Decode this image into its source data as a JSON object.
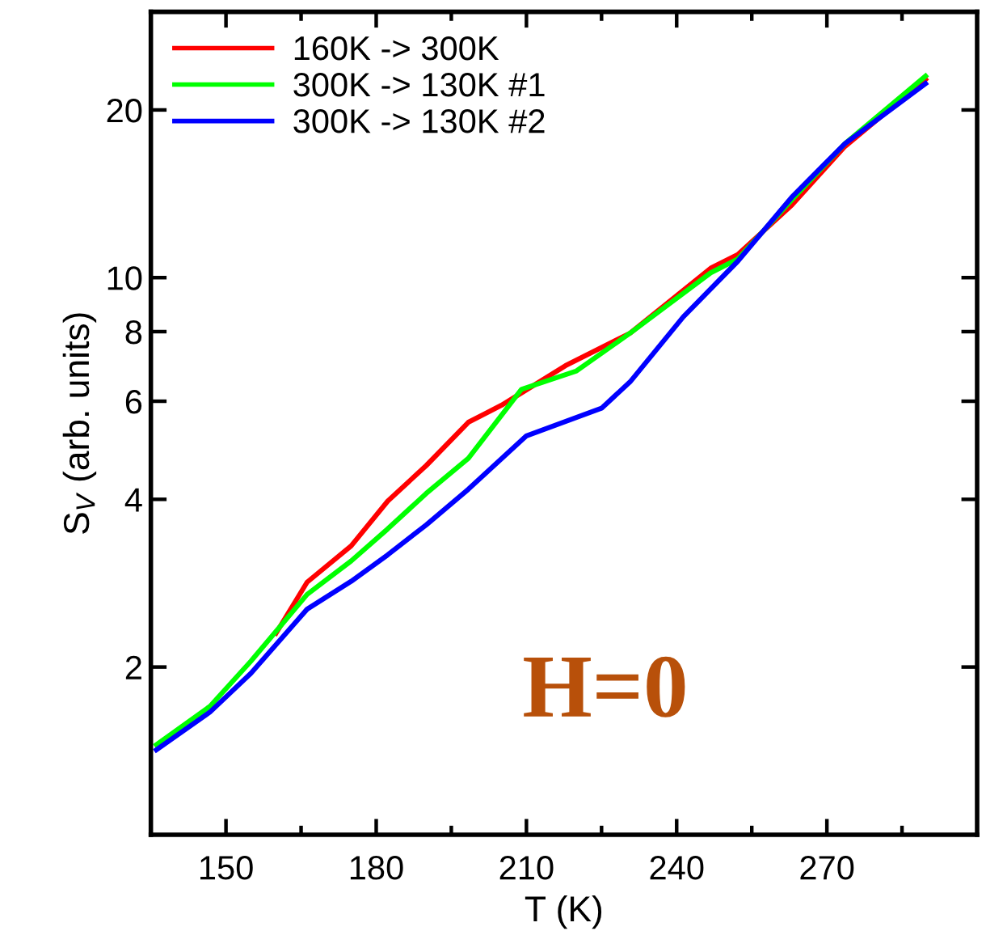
{
  "chart_data": {
    "type": "line",
    "xlabel": "T (K)",
    "ylabel": "S$_{V}$ (arb. units)",
    "log": "y",
    "xlim": [
      135,
      300
    ],
    "xticks": [
      150,
      180,
      210,
      240,
      270
    ],
    "ylim": [
      1,
      30
    ],
    "yticks": [
      2,
      4,
      6,
      8,
      10,
      20
    ],
    "grid": false,
    "legend": "top left",
    "marker": "none",
    "line_style": "solid",
    "annotations": [
      "H=0"
    ],
    "series": [
      {
        "name": "160K -> 300K",
        "color": "#ff0000",
        "x": [
          160,
          166.2,
          175,
          182.3,
          190,
          198.4,
          205,
          217.8,
          230.7,
          246.8,
          252.2,
          263,
          273.6,
          289.7
        ],
        "values": [
          2.3,
          2.84,
          3.3,
          3.97,
          4.6,
          5.5,
          5.9,
          6.95,
          7.95,
          10.4,
          11.0,
          13.5,
          17.2,
          22.7
        ]
      },
      {
        "name": "300K -> 130K #1",
        "color": "#00ff00",
        "x": [
          136.1,
          146.8,
          155,
          166.2,
          175,
          182.3,
          190,
          198.4,
          209,
          220,
          230.7,
          246.8,
          252.2,
          263,
          273.6,
          289.7
        ],
        "values": [
          1.45,
          1.7,
          2.05,
          2.7,
          3.1,
          3.54,
          4.1,
          4.74,
          6.3,
          6.8,
          7.95,
          10.2,
          10.8,
          13.8,
          17.4,
          23.0
        ]
      },
      {
        "name": "300K -> 130K #2",
        "color": "#0000ff",
        "x": [
          136.1,
          146.8,
          155,
          166.2,
          175,
          182.3,
          190,
          198.4,
          210,
          225,
          230.7,
          241.3,
          252.2,
          263,
          273.6,
          289.7
        ],
        "values": [
          1.42,
          1.66,
          1.95,
          2.54,
          2.85,
          3.18,
          3.6,
          4.17,
          5.2,
          5.83,
          6.5,
          8.5,
          10.7,
          13.95,
          17.4,
          22.3
        ]
      }
    ]
  }
}
